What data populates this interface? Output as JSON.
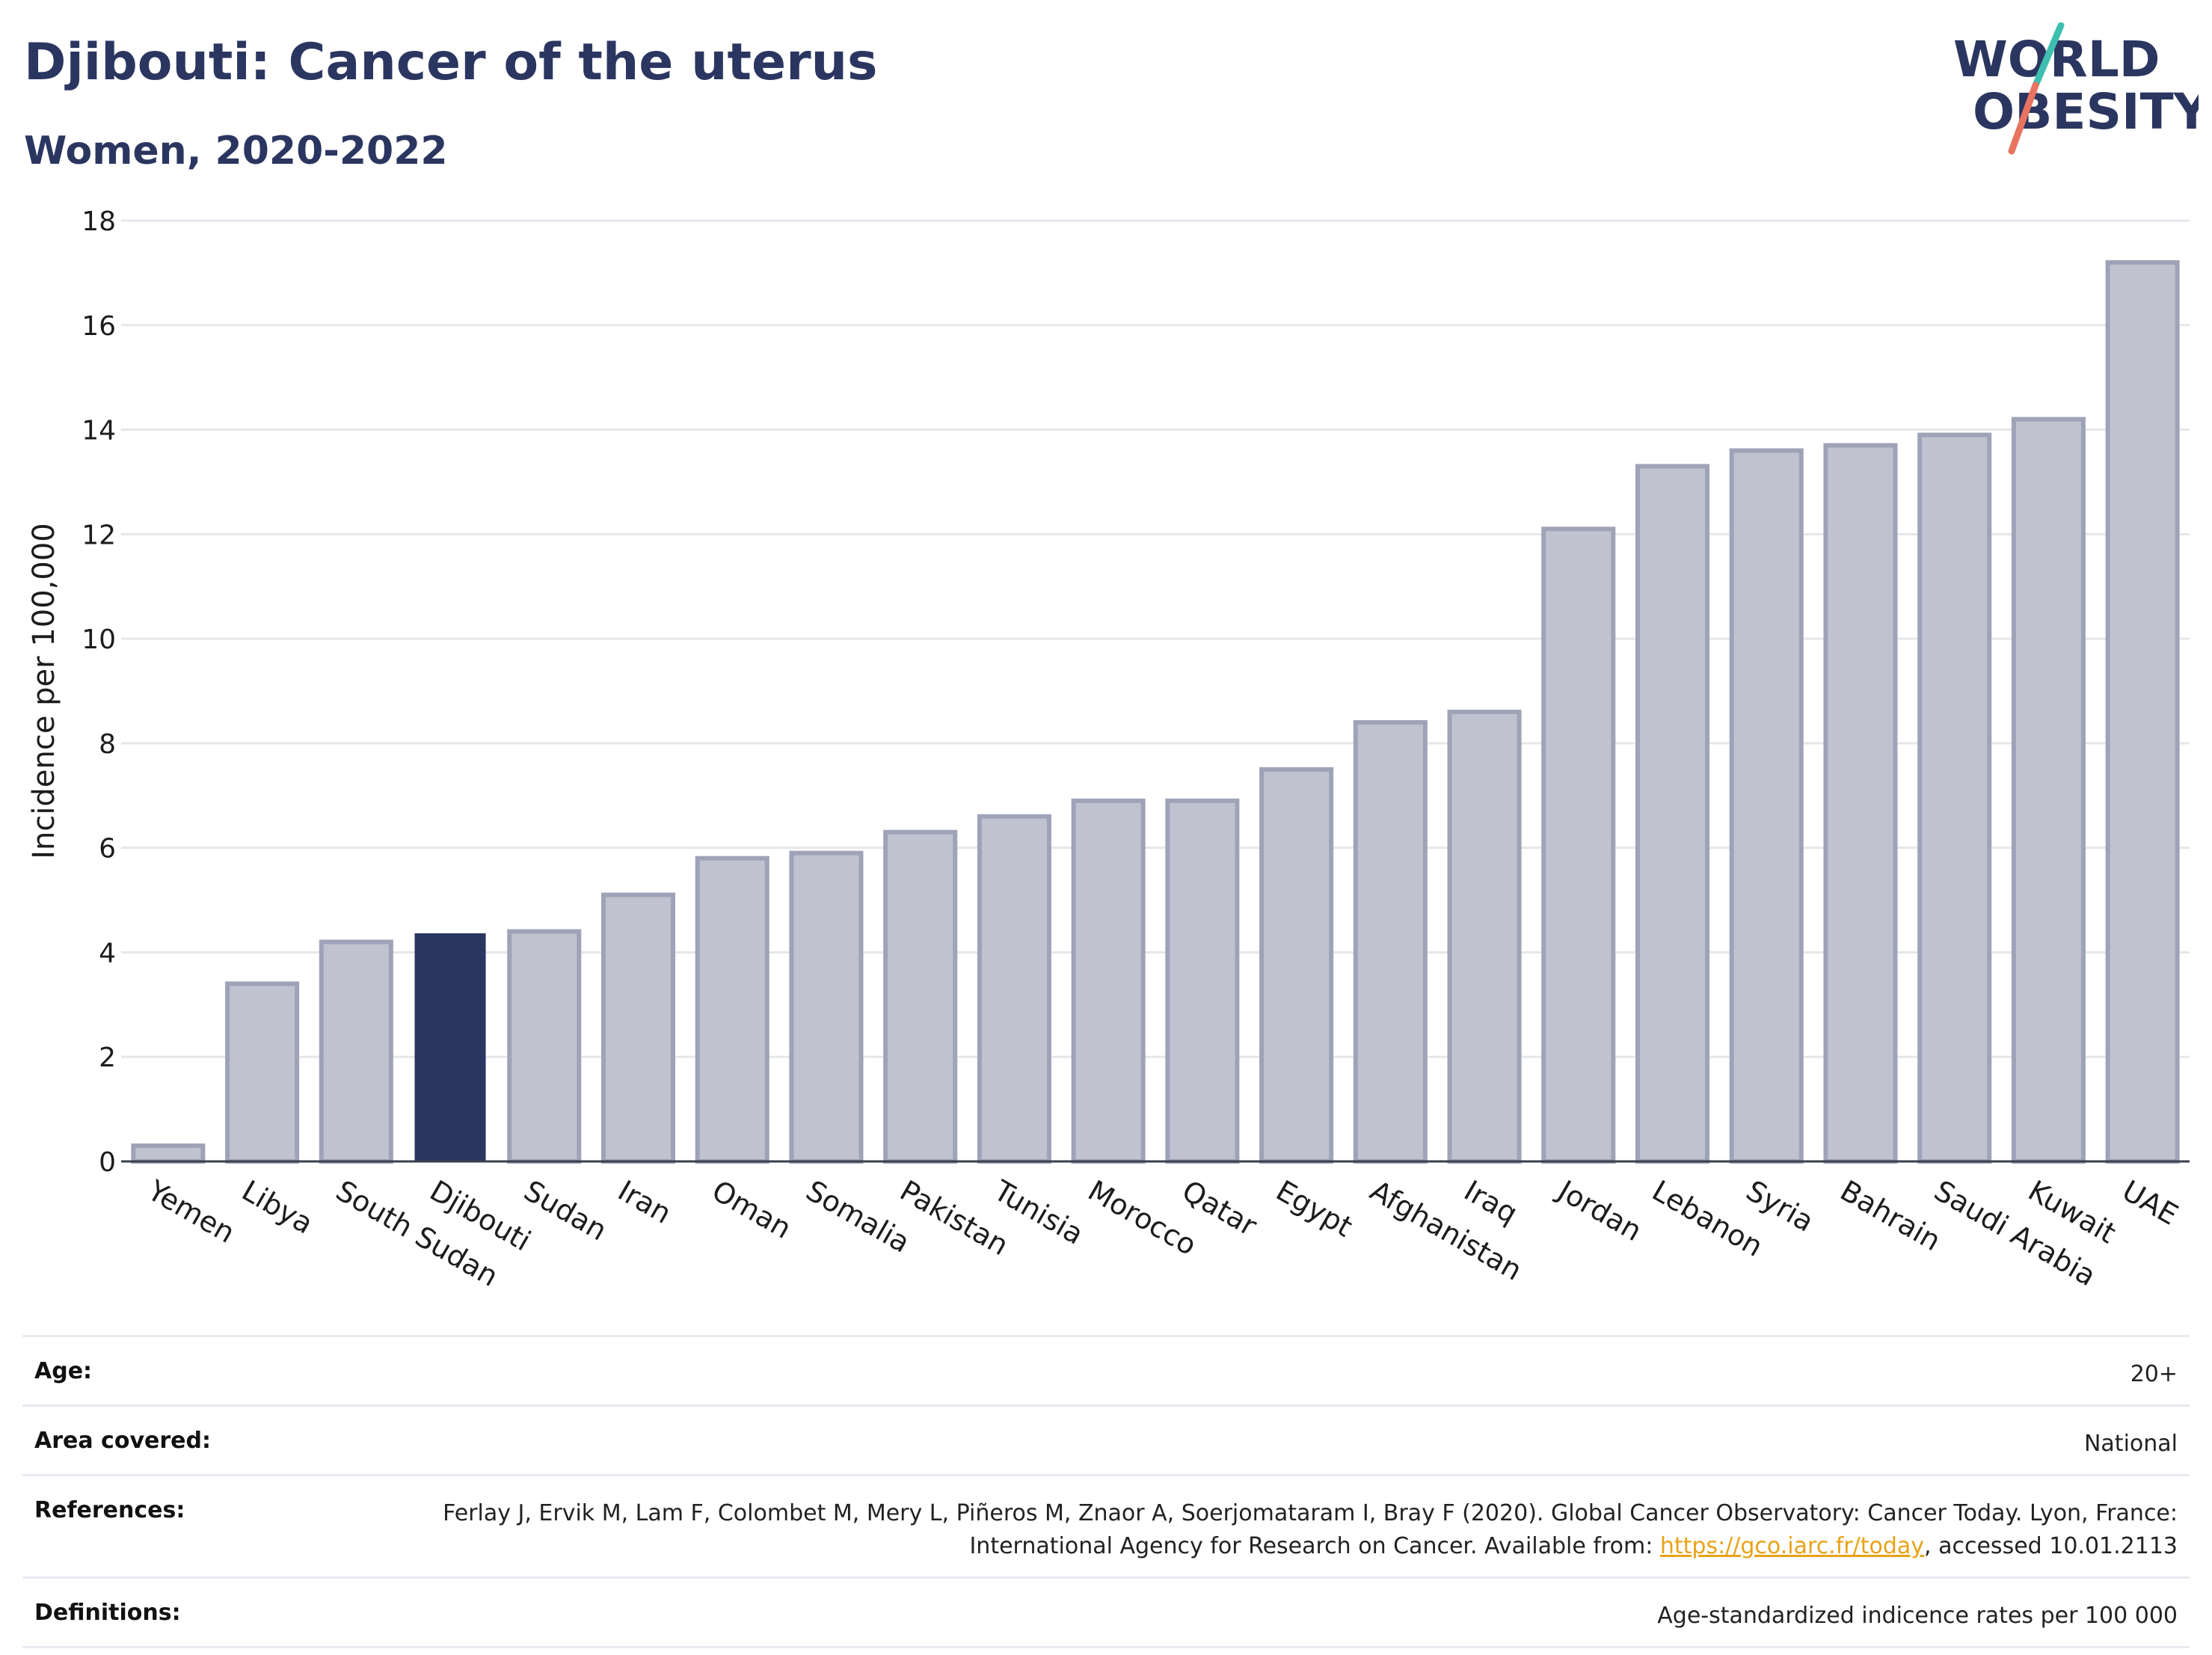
{
  "header": {
    "title": "Djibouti: Cancer of the uterus",
    "subtitle": "Women, 2020-2022"
  },
  "logo": {
    "line1": "WORLD",
    "line2": "OBESITY",
    "colors": {
      "text": "#2b3660",
      "slash_teal": "#3fbfb0",
      "slash_coral": "#e8735e"
    }
  },
  "chart_data": {
    "type": "bar",
    "categories": [
      "Yemen",
      "Libya",
      "South Sudan",
      "Djibouti",
      "Sudan",
      "Iran",
      "Oman",
      "Somalia",
      "Pakistan",
      "Tunisia",
      "Morocco",
      "Qatar",
      "Egypt",
      "Afghanistan",
      "Iraq",
      "Jordan",
      "Lebanon",
      "Syria",
      "Bahrain",
      "Saudi Arabia",
      "Kuwait",
      "UAE"
    ],
    "values": [
      0.3,
      3.4,
      4.2,
      4.35,
      4.4,
      5.1,
      5.8,
      5.9,
      6.3,
      6.6,
      6.9,
      6.9,
      7.5,
      8.4,
      8.6,
      12.1,
      13.3,
      13.6,
      13.7,
      13.9,
      14.2,
      17.2
    ],
    "highlight": "Djibouti",
    "ylabel": "Incidence per 100,000",
    "xlabel": "",
    "ylim": [
      0,
      18
    ],
    "yticks": [
      0,
      2,
      4,
      6,
      8,
      10,
      12,
      14,
      16,
      18
    ],
    "grid": true,
    "colors": {
      "bar": "#c0c3cf",
      "bar_edge": "#9ea3b8",
      "highlight": "#2b3660"
    }
  },
  "info": {
    "age": {
      "label": "Age:",
      "value": "20+"
    },
    "area": {
      "label": "Area covered:",
      "value": "National"
    },
    "references": {
      "label": "References:",
      "text_before": "Ferlay J, Ervik M, Lam F, Colombet M, Mery L, Piñeros M, Znaor A, Soerjomataram I, Bray F (2020). Global Cancer Observatory: Cancer Today. Lyon, France: International Agency for Research on Cancer. Available from: ",
      "link": "https://gco.iarc.fr/today",
      "text_after": ", accessed 10.01.2113"
    },
    "definitions": {
      "label": "Definitions:",
      "value": "Age-standardized indicence rates per 100 000"
    }
  }
}
